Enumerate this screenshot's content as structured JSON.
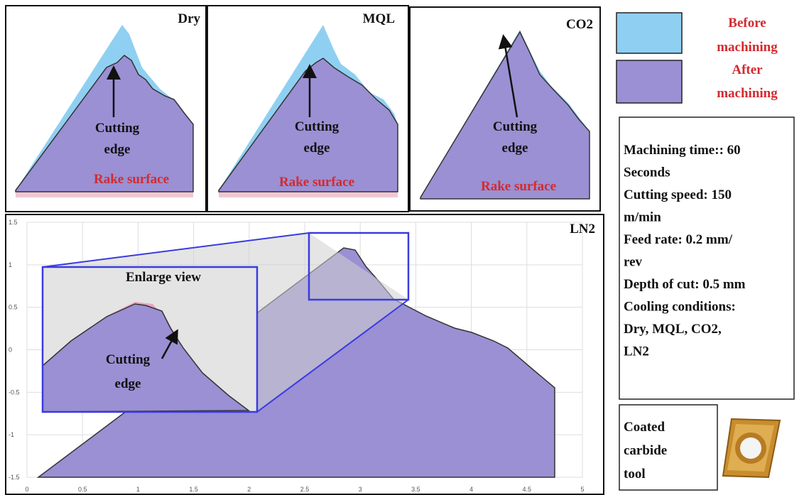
{
  "panels": [
    {
      "label": "Dry",
      "cutting_edge": [
        "Cutting",
        "edge"
      ],
      "surface": "Rake surface"
    },
    {
      "label": "MQL",
      "cutting_edge": [
        "Cutting",
        "edge"
      ],
      "surface": "Rake surface"
    },
    {
      "label": "CO2",
      "cutting_edge": [
        "Cutting",
        "edge"
      ],
      "surface": "Rake surface"
    }
  ],
  "ln2": {
    "label": "LN2",
    "enlarge": "Enlarge view",
    "cutting_edge": [
      "Cutting",
      "edge"
    ],
    "xlim": [
      0,
      5
    ],
    "ylim": [
      -1.5,
      1.5
    ],
    "xticks": [
      0,
      0.5,
      1,
      1.5,
      2,
      2.5,
      3,
      3.5,
      4,
      4.5,
      5
    ],
    "yticks": [
      1.5,
      1,
      0.5,
      0,
      -0.5,
      -1,
      -1.5
    ]
  },
  "legend": {
    "before": [
      "Before",
      "machining"
    ],
    "after": [
      "After",
      "machining"
    ]
  },
  "conditions": [
    "Machining time:: 60",
    "Seconds",
    "Cutting speed: 150",
    "m/min",
    "Feed rate: 0.2 mm/",
    "rev",
    "Depth of cut: 0.5 mm",
    "Cooling conditions:",
    "Dry, MQL, CO2,",
    "LN2"
  ],
  "tool": [
    "Coated",
    "carbide",
    "tool"
  ]
}
